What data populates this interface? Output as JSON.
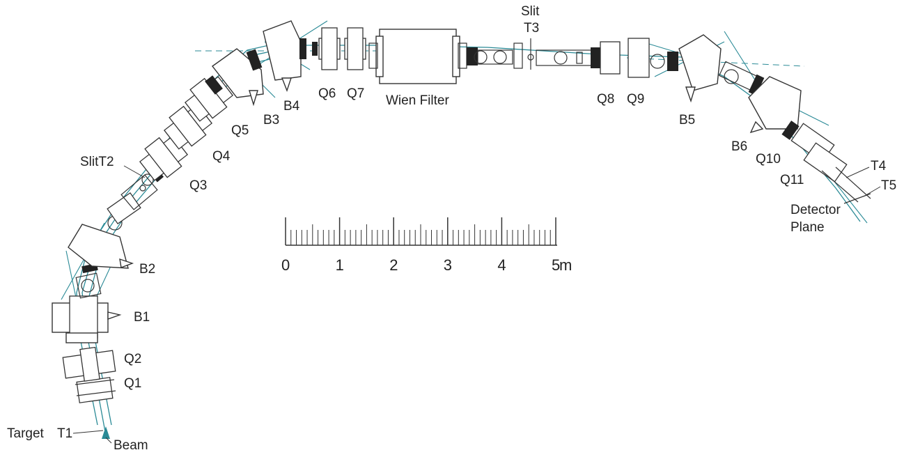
{
  "labels": {
    "target": "Target",
    "t1": "T1",
    "beam": "Beam",
    "q1": "Q1",
    "q2": "Q2",
    "b1": "B1",
    "b2": "B2",
    "slit_t2": "SlitT2",
    "q3": "Q3",
    "q4": "Q4",
    "q5": "Q5",
    "b3": "B3",
    "b4": "B4",
    "q6": "Q6",
    "q7": "Q7",
    "wien_filter": "Wien Filter",
    "slit": "Slit",
    "t3": "T3",
    "q8": "Q8",
    "q9": "Q9",
    "b5": "B5",
    "b6": "B6",
    "q10": "Q10",
    "q11": "Q11",
    "t4": "T4",
    "t5": "T5",
    "detector": "Detector",
    "plane": "Plane"
  },
  "scale_bar": {
    "tick_labels": [
      "0",
      "1",
      "2",
      "3",
      "4",
      "5"
    ],
    "unit": "m"
  },
  "colors": {
    "beam": "#2a8a96",
    "lines": "#333333"
  }
}
